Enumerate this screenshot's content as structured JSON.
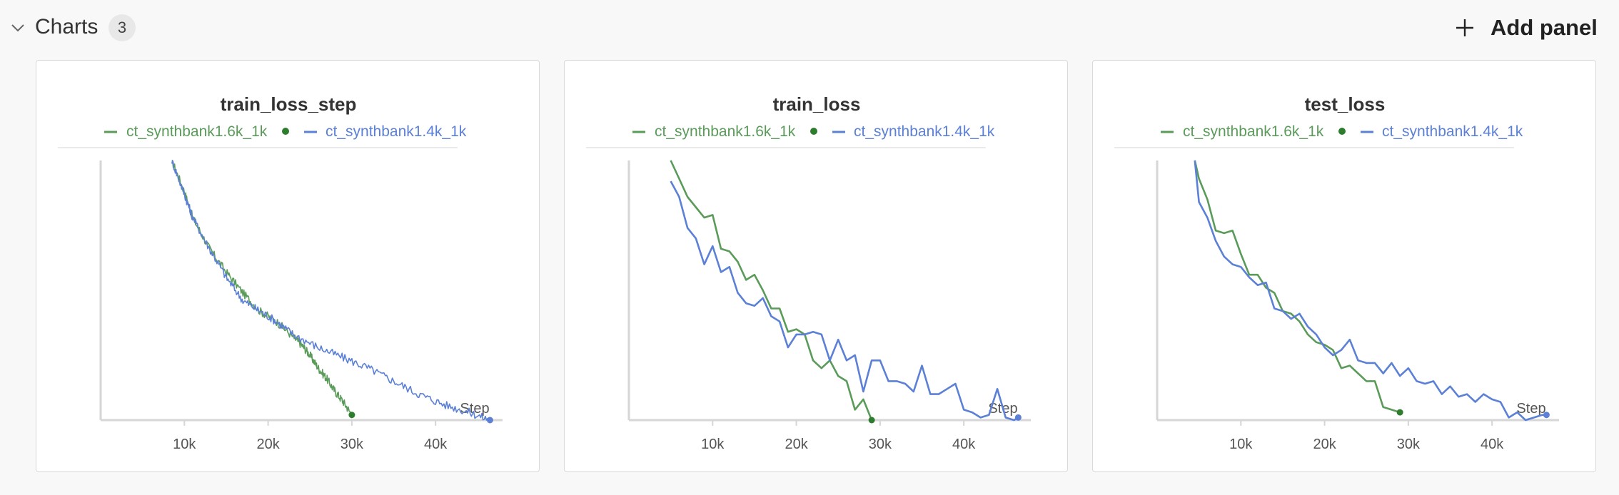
{
  "section": {
    "title": "Charts",
    "count": "3",
    "add_panel_label": "Add panel"
  },
  "colors": {
    "green": "#5a9b5a",
    "blue": "#5b80d6",
    "legend_dot_green": "#2e7d2e",
    "axis": "#d6d6d6"
  },
  "icons": {
    "collapse": "chevron-down-icon",
    "add": "plus-icon"
  },
  "chart_data": [
    {
      "type": "line",
      "title": "train_loss_step",
      "xlabel": "Step",
      "ylabel": "",
      "xlim": [
        0,
        48000
      ],
      "ylim": [
        0,
        1
      ],
      "x_ticks": [
        10000,
        20000,
        30000,
        40000
      ],
      "x_tick_labels": [
        "10k",
        "20k",
        "30k",
        "40k"
      ],
      "legend": [
        "ct_synthbank1.6k_1k",
        "ct_synthbank1.4k_1k"
      ],
      "series": [
        {
          "name": "ct_synthbank1.6k_1k",
          "color": "#5a9b5a",
          "noise": 0.008,
          "x": [
            8500,
            10000,
            11000,
            13000,
            15000,
            17000,
            19000,
            21000,
            23000,
            24000,
            25000,
            26000,
            27000,
            28000,
            29000,
            30000
          ],
          "y": [
            1.0,
            0.88,
            0.78,
            0.66,
            0.57,
            0.49,
            0.42,
            0.38,
            0.32,
            0.29,
            0.25,
            0.2,
            0.16,
            0.11,
            0.07,
            0.02
          ]
        },
        {
          "name": "ct_synthbank1.4k_1k",
          "color": "#5b80d6",
          "noise": 0.008,
          "x": [
            8500,
            10000,
            11000,
            13000,
            15000,
            17000,
            19000,
            21000,
            23000,
            26000,
            29000,
            32000,
            35000,
            38000,
            41000,
            44000,
            46500
          ],
          "y": [
            1.0,
            0.87,
            0.78,
            0.66,
            0.55,
            0.46,
            0.42,
            0.38,
            0.33,
            0.28,
            0.24,
            0.2,
            0.15,
            0.1,
            0.06,
            0.03,
            0.0
          ]
        }
      ]
    },
    {
      "type": "line",
      "title": "train_loss",
      "xlabel": "Step",
      "ylabel": "",
      "xlim": [
        0,
        48000
      ],
      "ylim": [
        0,
        1
      ],
      "x_ticks": [
        10000,
        20000,
        30000,
        40000
      ],
      "x_tick_labels": [
        "10k",
        "20k",
        "30k",
        "40k"
      ],
      "legend": [
        "ct_synthbank1.6k_1k",
        "ct_synthbank1.4k_1k"
      ],
      "series": [
        {
          "name": "ct_synthbank1.6k_1k",
          "color": "#5a9b5a",
          "x": [
            5000,
            6000,
            7000,
            8000,
            9000,
            10000,
            11000,
            12000,
            13000,
            14000,
            15000,
            16000,
            17000,
            18000,
            19000,
            20000,
            21000,
            22000,
            23000,
            24000,
            25000,
            26000,
            27000,
            28000,
            29000
          ],
          "y": [
            1.0,
            0.93,
            0.86,
            0.82,
            0.78,
            0.79,
            0.66,
            0.65,
            0.61,
            0.54,
            0.56,
            0.5,
            0.43,
            0.43,
            0.34,
            0.35,
            0.33,
            0.23,
            0.2,
            0.23,
            0.17,
            0.15,
            0.04,
            0.08,
            0.0
          ]
        },
        {
          "name": "ct_synthbank1.4k_1k",
          "color": "#5b80d6",
          "x": [
            5000,
            6000,
            7000,
            8000,
            9000,
            10000,
            11000,
            12000,
            13000,
            14000,
            15000,
            16000,
            17000,
            18000,
            19000,
            20000,
            21000,
            22000,
            23000,
            24000,
            25000,
            26000,
            27000,
            28000,
            29000,
            30000,
            31000,
            32000,
            33000,
            34000,
            35000,
            36000,
            37000,
            38000,
            39000,
            40000,
            41000,
            42000,
            43000,
            44000,
            45000,
            46000,
            46500
          ],
          "y": [
            0.92,
            0.86,
            0.74,
            0.7,
            0.6,
            0.67,
            0.57,
            0.59,
            0.49,
            0.45,
            0.44,
            0.47,
            0.4,
            0.38,
            0.28,
            0.33,
            0.33,
            0.34,
            0.33,
            0.23,
            0.31,
            0.23,
            0.25,
            0.11,
            0.23,
            0.23,
            0.15,
            0.15,
            0.14,
            0.11,
            0.21,
            0.1,
            0.1,
            0.12,
            0.14,
            0.04,
            0.03,
            0.01,
            0.02,
            0.12,
            0.01,
            0.0,
            0.01
          ]
        }
      ]
    },
    {
      "type": "line",
      "title": "test_loss",
      "xlabel": "Step",
      "ylabel": "",
      "xlim": [
        0,
        48000
      ],
      "ylim": [
        0,
        1
      ],
      "x_ticks": [
        10000,
        20000,
        30000,
        40000
      ],
      "x_tick_labels": [
        "10k",
        "20k",
        "30k",
        "40k"
      ],
      "legend": [
        "ct_synthbank1.6k_1k",
        "ct_synthbank1.4k_1k"
      ],
      "series": [
        {
          "name": "ct_synthbank1.6k_1k",
          "color": "#5a9b5a",
          "x": [
            4500,
            5000,
            6000,
            7000,
            8000,
            9000,
            10000,
            11000,
            12000,
            13000,
            14000,
            15000,
            16000,
            17000,
            18000,
            19000,
            20000,
            21000,
            22000,
            23000,
            24000,
            25000,
            26000,
            27000,
            28000,
            29000
          ],
          "y": [
            1.0,
            0.93,
            0.85,
            0.73,
            0.72,
            0.73,
            0.64,
            0.56,
            0.56,
            0.51,
            0.49,
            0.42,
            0.41,
            0.38,
            0.33,
            0.3,
            0.29,
            0.27,
            0.2,
            0.21,
            0.18,
            0.15,
            0.15,
            0.05,
            0.04,
            0.03
          ]
        },
        {
          "name": "ct_synthbank1.4k_1k",
          "color": "#5b80d6",
          "x": [
            4500,
            5000,
            6000,
            7000,
            8000,
            9000,
            10000,
            11000,
            12000,
            13000,
            14000,
            15000,
            16000,
            17000,
            18000,
            19000,
            20000,
            21000,
            22000,
            23000,
            24000,
            25000,
            26000,
            27000,
            28000,
            29000,
            30000,
            31000,
            32000,
            33000,
            34000,
            35000,
            36000,
            37000,
            38000,
            39000,
            40000,
            41000,
            42000,
            43000,
            44000,
            45000,
            46000,
            46500
          ],
          "y": [
            1.0,
            0.84,
            0.78,
            0.69,
            0.63,
            0.6,
            0.59,
            0.55,
            0.52,
            0.53,
            0.43,
            0.42,
            0.39,
            0.41,
            0.36,
            0.33,
            0.28,
            0.25,
            0.27,
            0.31,
            0.23,
            0.22,
            0.22,
            0.18,
            0.22,
            0.17,
            0.2,
            0.15,
            0.14,
            0.15,
            0.1,
            0.13,
            0.09,
            0.1,
            0.07,
            0.1,
            0.08,
            0.07,
            0.01,
            0.03,
            0.0,
            0.01,
            0.02,
            0.02
          ]
        }
      ]
    }
  ]
}
